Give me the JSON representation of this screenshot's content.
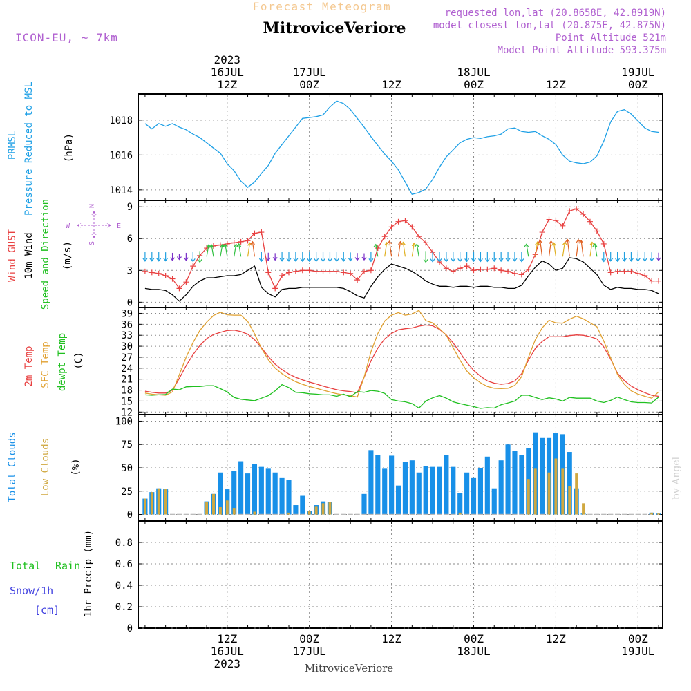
{
  "header": {
    "title_top": "Forecast Meteogram",
    "city": "MitroviceVeriore",
    "model": "ICON-EU, ~ 7km",
    "requested": "requested lon,lat (20.8658E, 42.8919N)",
    "closest": "model closest lon,lat (20.875E, 42.875N)",
    "point_alt": "Point Altitude 521m",
    "model_alt": "Model Point Altitude 593.375m"
  },
  "top_axis": [
    {
      "hour": 12,
      "lines": [
        "2023",
        "16JUL",
        "12Z"
      ]
    },
    {
      "hour": 24,
      "lines": [
        "17JUL",
        "00Z"
      ]
    },
    {
      "hour": 36,
      "lines": [
        "12Z"
      ]
    },
    {
      "hour": 48,
      "lines": [
        "18JUL",
        "00Z"
      ]
    },
    {
      "hour": 60,
      "lines": [
        "12Z"
      ]
    },
    {
      "hour": 72,
      "lines": [
        "19JUL",
        "00Z"
      ]
    }
  ],
  "bottom_axis": [
    {
      "hour": 12,
      "lines": [
        "12Z",
        "16JUL",
        "2023"
      ]
    },
    {
      "hour": 24,
      "lines": [
        "00Z",
        "17JUL"
      ]
    },
    {
      "hour": 36,
      "lines": [
        "12Z"
      ]
    },
    {
      "hour": 48,
      "lines": [
        "00Z",
        "18JUL"
      ]
    },
    {
      "hour": 60,
      "lines": [
        "12Z"
      ]
    },
    {
      "hour": 72,
      "lines": [
        "00Z",
        "19JUL"
      ]
    }
  ],
  "bottom_label": "MitroviceVeriore",
  "credit": "by Angel",
  "colors": {
    "pressure": "#1ea0e6",
    "gust": "#e84040",
    "wind": "#000000",
    "temp2m": "#e84040",
    "sfc": "#e0a030",
    "dewpt": "#20c020",
    "total_clouds": "#1890e8",
    "low_clouds": "#d0a840",
    "rain": "#20c020",
    "snow": "#4040e0",
    "purple": "#b060d0",
    "grid": "#888888"
  },
  "chart_data": [
    {
      "type": "line",
      "panel": "pressure",
      "ylabels": [
        "PRMSL",
        "Pressure Reduced to MSL"
      ],
      "unit": "(hPa)",
      "ylim": [
        1013.4,
        1019.5
      ],
      "yticks": [
        "1014",
        "1016",
        "1018"
      ],
      "x_hours": [
        0,
        1,
        2,
        3,
        4,
        5,
        6,
        7,
        8,
        9,
        10,
        11,
        12,
        13,
        14,
        15,
        16,
        17,
        18,
        19,
        20,
        21,
        22,
        23,
        24,
        25,
        26,
        27,
        28,
        29,
        30,
        31,
        32,
        33,
        34,
        35,
        36,
        37,
        38,
        39,
        40,
        41,
        42,
        43,
        44,
        45,
        46,
        47,
        48,
        49,
        50,
        51,
        52,
        53,
        54,
        55,
        56,
        57,
        58,
        59,
        60,
        61,
        62,
        63,
        64,
        65,
        66,
        67,
        68,
        69,
        70,
        71,
        72,
        73,
        74,
        75
      ],
      "series": [
        {
          "values": [
            1017.8,
            1017.5,
            1017.8,
            1017.65,
            1017.8,
            1017.6,
            1017.45,
            1017.2,
            1017.0,
            1016.7,
            1016.4,
            1016.1,
            1015.5,
            1015.1,
            1014.5,
            1014.15,
            1014.45,
            1014.95,
            1015.4,
            1016.1,
            1016.6,
            1017.1,
            1017.6,
            1018.1,
            1018.15,
            1018.2,
            1018.3,
            1018.75,
            1019.1,
            1018.95,
            1018.6,
            1018.1,
            1017.6,
            1017.05,
            1016.55,
            1016.05,
            1015.65,
            1015.15,
            1014.45,
            1013.75,
            1013.85,
            1014.05,
            1014.6,
            1015.3,
            1015.9,
            1016.3,
            1016.7,
            1016.9,
            1017.0,
            1016.95,
            1017.05,
            1017.1,
            1017.2,
            1017.5,
            1017.55,
            1017.35,
            1017.3,
            1017.35,
            1017.1,
            1016.9,
            1016.6,
            1016.0,
            1015.65,
            1015.55,
            1015.5,
            1015.6,
            1015.95,
            1016.8,
            1017.9,
            1018.5,
            1018.6,
            1018.35,
            1017.95,
            1017.55,
            1017.35,
            1017.3
          ]
        }
      ]
    },
    {
      "type": "line",
      "panel": "wind",
      "ylabels": [
        "Wind GUST",
        "10m Wind",
        "Speed and Direction"
      ],
      "unit": "(m/s)",
      "compass": [
        "N",
        "S",
        "W",
        "E"
      ],
      "ylim": [
        -0.5,
        9.6
      ],
      "yticks": [
        "0",
        "3",
        "6",
        "9"
      ],
      "x_hours": [
        0,
        1,
        2,
        3,
        4,
        5,
        6,
        7,
        8,
        9,
        10,
        11,
        12,
        13,
        14,
        15,
        16,
        17,
        18,
        19,
        20,
        21,
        22,
        23,
        24,
        25,
        26,
        27,
        28,
        29,
        30,
        31,
        32,
        33,
        34,
        35,
        36,
        37,
        38,
        39,
        40,
        41,
        42,
        43,
        44,
        45,
        46,
        47,
        48,
        49,
        50,
        51,
        52,
        53,
        54,
        55,
        56,
        57,
        58,
        59,
        60,
        61,
        62,
        63,
        64,
        65,
        66,
        67,
        68,
        69,
        70,
        71,
        72,
        73,
        74,
        75
      ],
      "series": [
        {
          "name": "Wind GUST",
          "values": [
            2.9,
            2.8,
            2.7,
            2.5,
            2.2,
            1.3,
            1.9,
            3.4,
            4.4,
            5.1,
            5.3,
            5.4,
            5.5,
            5.6,
            5.7,
            5.8,
            6.5,
            6.6,
            2.8,
            1.3,
            2.5,
            2.8,
            2.9,
            3.0,
            3.0,
            2.9,
            2.9,
            2.9,
            2.9,
            2.8,
            2.7,
            2.1,
            2.9,
            3.0,
            5.1,
            6.2,
            7.1,
            7.6,
            7.7,
            7.1,
            6.2,
            5.6,
            4.7,
            3.8,
            3.2,
            2.9,
            3.2,
            3.4,
            3.0,
            3.1,
            3.1,
            3.2,
            3.0,
            2.9,
            2.7,
            2.6,
            3.1,
            4.5,
            6.6,
            7.8,
            7.7,
            7.2,
            8.6,
            8.8,
            8.3,
            7.6,
            6.7,
            5.5,
            2.8,
            2.9,
            2.9,
            2.9,
            2.7,
            2.5,
            2.0,
            2.0
          ]
        },
        {
          "name": "10m Wind",
          "values": [
            1.3,
            1.2,
            1.2,
            1.1,
            0.7,
            0.1,
            0.7,
            1.5,
            2.0,
            2.3,
            2.3,
            2.4,
            2.5,
            2.5,
            2.6,
            3.0,
            3.4,
            1.4,
            0.8,
            0.5,
            1.2,
            1.3,
            1.3,
            1.4,
            1.4,
            1.4,
            1.4,
            1.4,
            1.4,
            1.3,
            1.0,
            0.6,
            0.4,
            1.5,
            2.4,
            3.1,
            3.6,
            3.4,
            3.2,
            2.9,
            2.5,
            2.0,
            1.7,
            1.5,
            1.5,
            1.4,
            1.5,
            1.5,
            1.4,
            1.5,
            1.5,
            1.4,
            1.4,
            1.3,
            1.3,
            1.6,
            2.5,
            3.3,
            3.9,
            3.6,
            3.0,
            3.2,
            4.2,
            4.1,
            3.8,
            3.2,
            2.6,
            1.6,
            1.2,
            1.4,
            1.3,
            1.3,
            1.2,
            1.2,
            1.1,
            0.8
          ]
        }
      ]
    },
    {
      "type": "line",
      "panel": "temperature",
      "ylabels": [
        "2m Temp",
        "SFC Temp",
        "dewpt Temp"
      ],
      "unit": "(C)",
      "ylim": [
        11.3,
        40.6
      ],
      "yticks": [
        "12",
        "15",
        "18",
        "21",
        "24",
        "27",
        "30",
        "33",
        "36",
        "39"
      ],
      "x_hours": [
        0,
        1,
        2,
        3,
        4,
        5,
        6,
        7,
        8,
        9,
        10,
        11,
        12,
        13,
        14,
        15,
        16,
        17,
        18,
        19,
        20,
        21,
        22,
        23,
        24,
        25,
        26,
        27,
        28,
        29,
        30,
        31,
        32,
        33,
        34,
        35,
        36,
        37,
        38,
        39,
        40,
        41,
        42,
        43,
        44,
        45,
        46,
        47,
        48,
        49,
        50,
        51,
        52,
        53,
        54,
        55,
        56,
        57,
        58,
        59,
        60,
        61,
        62,
        63,
        64,
        65,
        66,
        67,
        68,
        69,
        70,
        71,
        72,
        73,
        74,
        75
      ],
      "series": [
        {
          "name": "2m Temp",
          "values": [
            17.7,
            17.4,
            17.2,
            17.2,
            18.0,
            21.2,
            24.7,
            27.7,
            30.2,
            32.1,
            33.2,
            33.8,
            34.3,
            34.4,
            34.0,
            33.3,
            31.8,
            29.6,
            27.2,
            25.1,
            23.6,
            22.4,
            21.5,
            20.8,
            20.2,
            19.7,
            19.1,
            18.6,
            18.1,
            17.8,
            17.6,
            17.3,
            21.5,
            26.0,
            29.5,
            32.0,
            33.5,
            34.5,
            34.8,
            35.0,
            35.5,
            35.8,
            35.6,
            34.6,
            33.1,
            30.9,
            28.3,
            25.6,
            23.4,
            21.8,
            20.5,
            19.9,
            19.6,
            19.8,
            20.5,
            22.5,
            26.2,
            29.4,
            31.3,
            32.6,
            32.6,
            32.6,
            32.9,
            33.1,
            33.0,
            32.6,
            32.0,
            29.8,
            26.5,
            22.6,
            20.6,
            19.1,
            18.1,
            17.3,
            16.6,
            16.3
          ]
        },
        {
          "name": "SFC Temp",
          "values": [
            17.2,
            16.9,
            16.7,
            16.6,
            17.5,
            22.2,
            27.0,
            31.0,
            34.3,
            36.6,
            38.4,
            39.3,
            38.6,
            38.5,
            38.5,
            36.8,
            33.4,
            29.4,
            26.3,
            24.0,
            22.5,
            21.3,
            20.3,
            19.6,
            19.0,
            18.5,
            18.0,
            17.5,
            17.0,
            16.7,
            16.5,
            16.1,
            21.6,
            28.5,
            33.5,
            36.9,
            38.5,
            39.2,
            38.5,
            38.8,
            39.8,
            37.0,
            36.4,
            34.8,
            33.0,
            29.6,
            26.2,
            23.2,
            21.4,
            20.0,
            19.0,
            18.5,
            18.4,
            18.5,
            19.3,
            21.7,
            27.0,
            31.8,
            35.0,
            37.1,
            36.4,
            36.3,
            37.4,
            38.2,
            37.5,
            36.4,
            35.3,
            31.4,
            26.8,
            22.3,
            19.6,
            17.8,
            16.9,
            16.3,
            15.8,
            17.5
          ]
        },
        {
          "name": "dewpt Temp",
          "values": [
            16.7,
            16.6,
            16.7,
            16.8,
            18.3,
            18.1,
            18.9,
            19.0,
            19.0,
            19.2,
            19.2,
            18.4,
            17.5,
            16.0,
            15.5,
            15.3,
            15.1,
            15.8,
            16.5,
            17.8,
            19.5,
            18.7,
            17.4,
            17.3,
            17.0,
            16.9,
            16.7,
            16.7,
            16.3,
            16.9,
            16.2,
            17.6,
            17.4,
            17.9,
            17.7,
            17.1,
            15.4,
            15.0,
            14.8,
            14.3,
            13.1,
            15.0,
            15.9,
            16.5,
            15.8,
            14.8,
            14.3,
            13.9,
            13.5,
            13.0,
            13.2,
            13.1,
            14.0,
            14.5,
            15.0,
            16.6,
            16.6,
            16.0,
            15.4,
            15.9,
            15.6,
            15.0,
            16.0,
            15.8,
            15.8,
            15.8,
            15.0,
            14.6,
            15.2,
            16.1,
            15.4,
            14.8,
            14.6,
            14.6,
            14.5,
            16.1
          ]
        }
      ]
    },
    {
      "type": "bar",
      "panel": "clouds",
      "ylabels": [
        "Total Clouds",
        "Low Clouds"
      ],
      "unit": "(%)",
      "ylim": [
        -7,
        107
      ],
      "yticks": [
        "0",
        "25",
        "50",
        "75",
        "100"
      ],
      "x_hours": [
        0,
        1,
        2,
        3,
        4,
        5,
        6,
        7,
        8,
        9,
        10,
        11,
        12,
        13,
        14,
        15,
        16,
        17,
        18,
        19,
        20,
        21,
        22,
        23,
        24,
        25,
        26,
        27,
        28,
        29,
        30,
        31,
        32,
        33,
        34,
        35,
        36,
        37,
        38,
        39,
        40,
        41,
        42,
        43,
        44,
        45,
        46,
        47,
        48,
        49,
        50,
        51,
        52,
        53,
        54,
        55,
        56,
        57,
        58,
        59,
        60,
        61,
        62,
        63,
        64,
        65,
        66,
        67,
        68,
        69,
        70,
        71,
        72,
        73,
        74,
        75
      ],
      "series": [
        {
          "name": "Total Clouds",
          "values": [
            17,
            24,
            28,
            27,
            0,
            0,
            0,
            0,
            0,
            14,
            22,
            45,
            27,
            47,
            57,
            44,
            54,
            51,
            49,
            45,
            39,
            37,
            10,
            20,
            4,
            10,
            14,
            13,
            0,
            0,
            0,
            0,
            22,
            69,
            64,
            49,
            63,
            31,
            56,
            58,
            45,
            52,
            51,
            51,
            64,
            51,
            23,
            45,
            39,
            50,
            62,
            28,
            58,
            75,
            68,
            64,
            71,
            88,
            82,
            82,
            87,
            86,
            67,
            28,
            1,
            0,
            0,
            0,
            0,
            0,
            0,
            0,
            0,
            0,
            2,
            1
          ]
        },
        {
          "name": "Low Clouds",
          "values": [
            17,
            24,
            28,
            27,
            0,
            0,
            0,
            0,
            0,
            13,
            22,
            8,
            15,
            7,
            0,
            0,
            3,
            0,
            0,
            0,
            0,
            2,
            0,
            0,
            4,
            9,
            12,
            13,
            0,
            0,
            0,
            0,
            0,
            0,
            0,
            0,
            0,
            0,
            0,
            0,
            0,
            0,
            0,
            0,
            0,
            0,
            2,
            0,
            0,
            0,
            0,
            0,
            0,
            0,
            0,
            0,
            38,
            49,
            0,
            45,
            60,
            49,
            30,
            44,
            12,
            0,
            0,
            0,
            0,
            0,
            0,
            0,
            0,
            0,
            2,
            1
          ]
        }
      ]
    },
    {
      "type": "line",
      "panel": "precip",
      "ylabels": [
        "1hr Precip (mm)"
      ],
      "legend": [
        "Total",
        "Rain",
        "Snow/1h",
        "[cm]"
      ],
      "ylim": [
        0,
        1.0
      ],
      "yticks": [
        "0",
        "0.2",
        "0.4",
        "0.6",
        "0.8"
      ],
      "x_hours": [
        0,
        75
      ],
      "series": [
        {
          "name": "Total",
          "values": [
            0,
            0
          ]
        }
      ]
    }
  ]
}
